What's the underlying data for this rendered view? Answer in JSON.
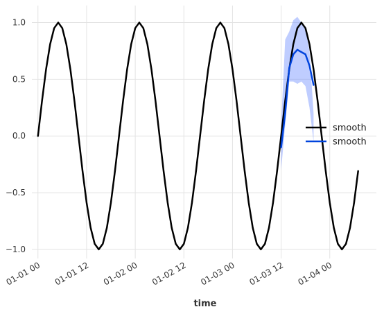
{
  "chart_data": {
    "type": "line",
    "title": "",
    "xlabel": "time",
    "ylabel": "",
    "grid": true,
    "legend_position": "center-right",
    "x_unit": "hours",
    "x_ticks": [
      0,
      12,
      24,
      36,
      48,
      60,
      72
    ],
    "x_tick_labels": [
      "01-01 00",
      "01-01 12",
      "01-02 00",
      "01-02 12",
      "01-03 00",
      "01-03 12",
      "01-04 00"
    ],
    "y_ticks": [
      -1.0,
      -0.5,
      0.0,
      0.5,
      1.0
    ],
    "y_tick_labels": [
      "−1.0",
      "−0.5",
      "0.0",
      "0.5",
      "1.0"
    ],
    "xlim": [
      -1.5,
      83.5
    ],
    "ylim": [
      -1.08,
      1.15
    ],
    "colors": {
      "series1": "#000000",
      "series2": "#0044dd",
      "band": "#6688ff"
    },
    "series": [
      {
        "name": "smooth",
        "color": "#000000",
        "x": [
          0,
          1,
          2,
          3,
          4,
          5,
          6,
          7,
          8,
          9,
          10,
          11,
          12,
          13,
          14,
          15,
          16,
          17,
          18,
          19,
          20,
          21,
          22,
          23,
          24,
          25,
          26,
          27,
          28,
          29,
          30,
          31,
          32,
          33,
          34,
          35,
          36,
          37,
          38,
          39,
          40,
          41,
          42,
          43,
          44,
          45,
          46,
          47,
          48,
          49,
          50,
          51,
          52,
          53,
          54,
          55,
          56,
          57,
          58,
          59,
          60,
          61,
          62,
          63,
          64,
          65,
          66,
          67,
          68,
          69,
          70,
          71,
          72,
          73,
          74,
          75,
          76,
          77,
          78,
          79
        ],
        "values": [
          0.0,
          0.309,
          0.588,
          0.809,
          0.951,
          1.0,
          0.951,
          0.809,
          0.588,
          0.309,
          0.0,
          -0.309,
          -0.588,
          -0.809,
          -0.951,
          -1.0,
          -0.951,
          -0.809,
          -0.588,
          -0.309,
          0.0,
          0.309,
          0.588,
          0.809,
          0.951,
          1.0,
          0.951,
          0.809,
          0.588,
          0.309,
          0.0,
          -0.309,
          -0.588,
          -0.809,
          -0.951,
          -1.0,
          -0.951,
          -0.809,
          -0.588,
          -0.309,
          0.0,
          0.309,
          0.588,
          0.809,
          0.951,
          1.0,
          0.951,
          0.809,
          0.588,
          0.309,
          0.0,
          -0.309,
          -0.588,
          -0.809,
          -0.951,
          -1.0,
          -0.951,
          -0.809,
          -0.588,
          -0.309,
          0.0,
          0.309,
          0.588,
          0.809,
          0.951,
          1.0,
          0.951,
          0.809,
          0.588,
          0.309,
          0.0,
          -0.309,
          -0.588,
          -0.809,
          -0.951,
          -1.0,
          -0.951,
          -0.809,
          -0.588,
          -0.309
        ]
      },
      {
        "name": "smooth",
        "color": "#0044dd",
        "x": [
          60,
          61,
          62,
          63,
          64,
          65,
          66,
          67,
          68
        ],
        "values": [
          -0.1,
          0.2,
          0.6,
          0.72,
          0.76,
          0.74,
          0.72,
          0.62,
          0.45
        ],
        "lower": [
          -0.3,
          0.1,
          0.48,
          0.48,
          0.46,
          0.48,
          0.44,
          0.25,
          -0.05
        ],
        "upper": [
          0.1,
          0.85,
          0.92,
          1.02,
          1.05,
          1.0,
          0.95,
          0.75,
          0.2
        ]
      }
    ],
    "legend": [
      "smooth",
      "smooth"
    ]
  }
}
